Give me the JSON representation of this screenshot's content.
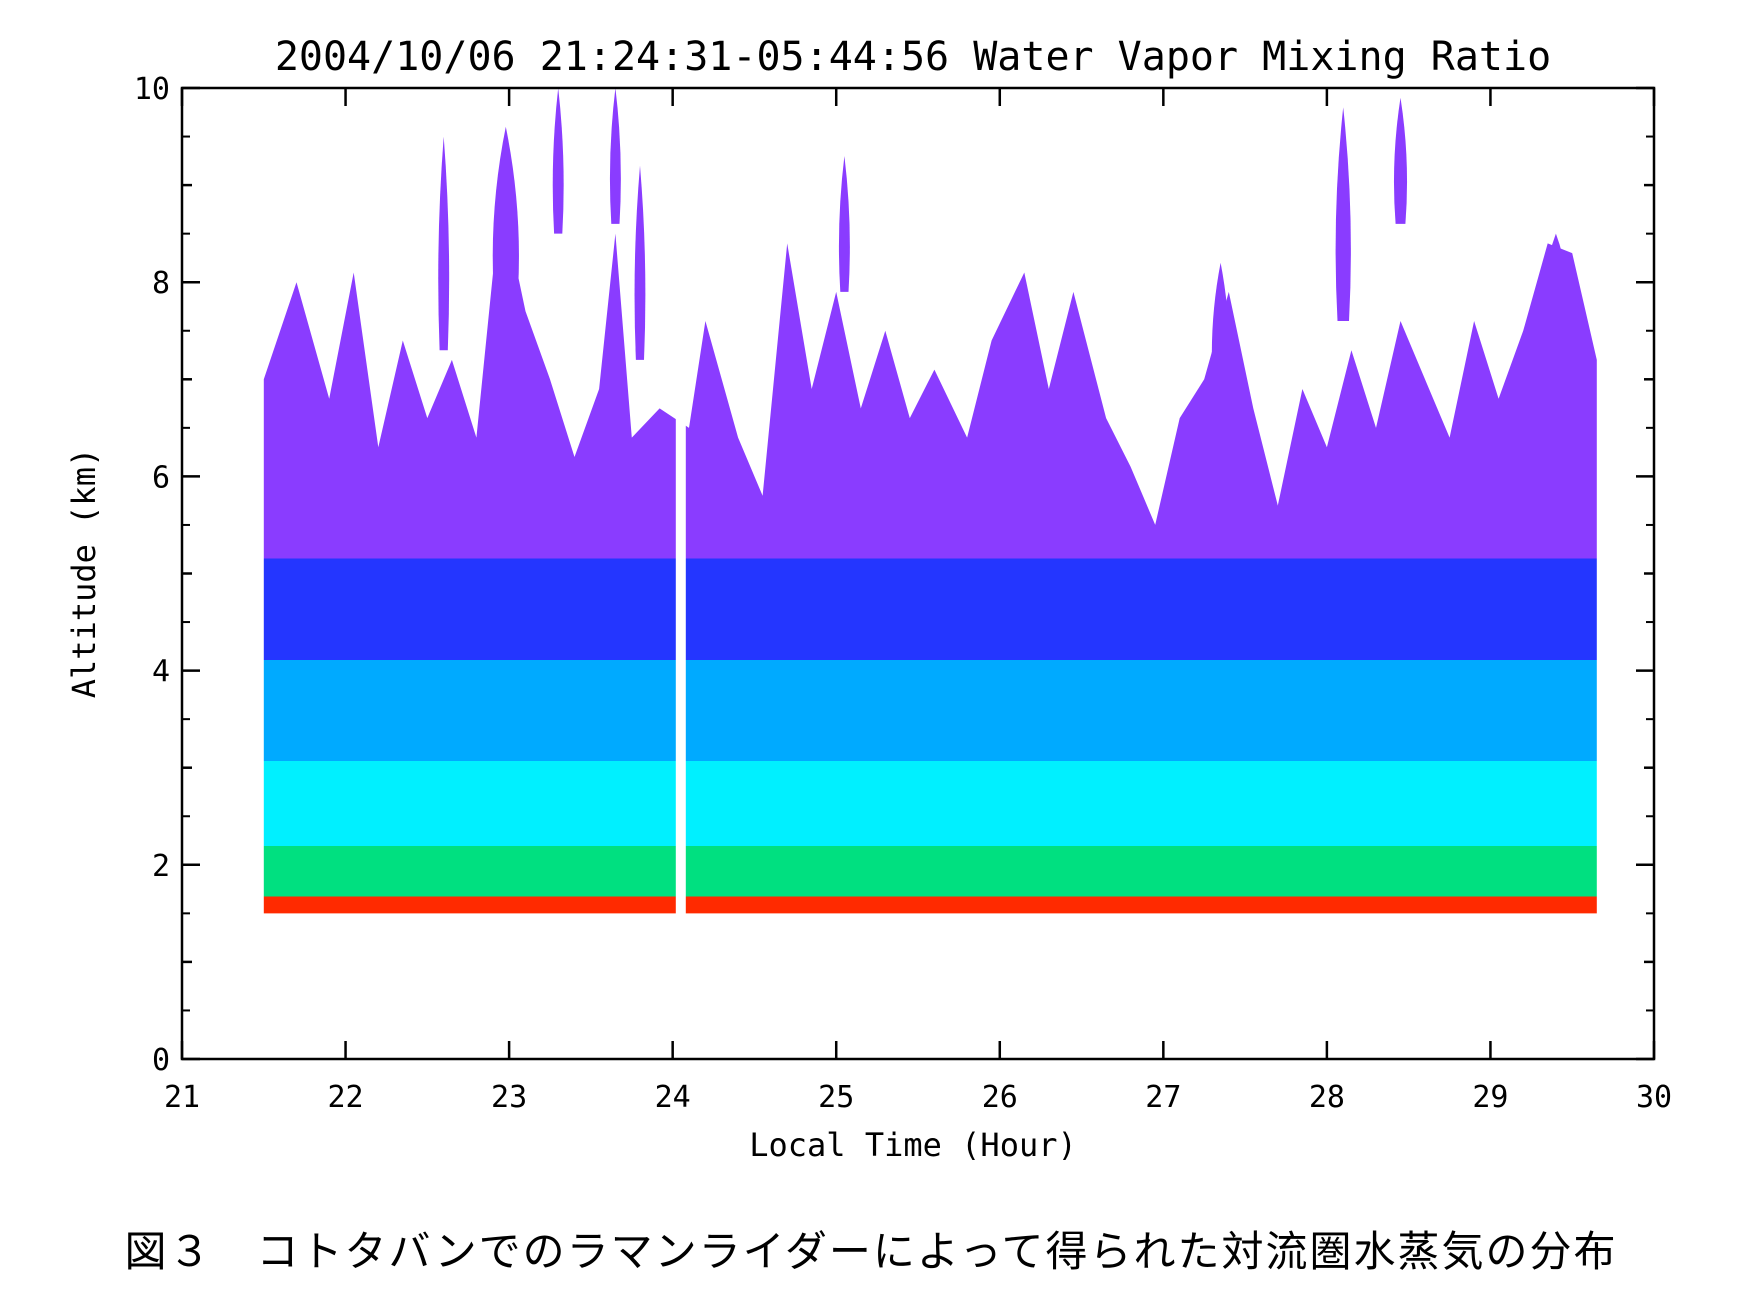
{
  "chart_data": {
    "type": "heatmap",
    "title": "2004/10/06 21:24:31-05:44:56 Water Vapor Mixing Ratio",
    "xlabel": "Local Time (Hour)",
    "ylabel": "Altitude (km)",
    "xlim": [
      21,
      30
    ],
    "ylim": [
      0,
      10
    ],
    "x_ticks": [
      "21",
      "22",
      "23",
      "24",
      "25",
      "26",
      "27",
      "28",
      "29",
      "30"
    ],
    "y_ticks": [
      "0",
      "2",
      "4",
      "6",
      "8",
      "10"
    ],
    "data_extent": {
      "x": [
        21.5,
        29.65
      ],
      "y": [
        1.5,
        10
      ]
    },
    "gap_at_hour": 24.05,
    "color_scale": [
      "#ff2a00",
      "#00c800",
      "#00ffff",
      "#00aaff",
      "#1f4fff",
      "#3a1fff",
      "#8a3cff",
      "#ffffff"
    ],
    "layer_colors_by_altitude": [
      {
        "altitude_km": [
          1.5,
          1.7
        ],
        "color": "#ff2a00"
      },
      {
        "altitude_km": [
          1.7,
          2.3
        ],
        "color": "#00e080"
      },
      {
        "altitude_km": [
          2.3,
          3.3
        ],
        "color": "#00f0ff"
      },
      {
        "altitude_km": [
          3.3,
          4.5
        ],
        "color": "#00aaff"
      },
      {
        "altitude_km": [
          4.5,
          5.7
        ],
        "color": "#2436ff"
      },
      {
        "altitude_km": [
          5.7,
          7.5
        ],
        "color": "#8a3cff"
      }
    ],
    "upper_boundary_km": [
      {
        "x": 21.5,
        "y": 7.0
      },
      {
        "x": 21.7,
        "y": 8.0
      },
      {
        "x": 21.9,
        "y": 6.8
      },
      {
        "x": 22.05,
        "y": 8.1
      },
      {
        "x": 22.2,
        "y": 6.3
      },
      {
        "x": 22.35,
        "y": 7.4
      },
      {
        "x": 22.5,
        "y": 6.6
      },
      {
        "x": 22.65,
        "y": 7.2
      },
      {
        "x": 22.8,
        "y": 6.4
      },
      {
        "x": 22.95,
        "y": 8.9
      },
      {
        "x": 23.1,
        "y": 7.7
      },
      {
        "x": 23.25,
        "y": 7.0
      },
      {
        "x": 23.4,
        "y": 6.2
      },
      {
        "x": 23.55,
        "y": 6.9
      },
      {
        "x": 23.65,
        "y": 8.5
      },
      {
        "x": 23.75,
        "y": 6.4
      },
      {
        "x": 23.92,
        "y": 6.7
      },
      {
        "x": 24.1,
        "y": 6.5
      },
      {
        "x": 24.2,
        "y": 7.6
      },
      {
        "x": 24.4,
        "y": 6.4
      },
      {
        "x": 24.55,
        "y": 5.8
      },
      {
        "x": 24.7,
        "y": 8.4
      },
      {
        "x": 24.85,
        "y": 6.9
      },
      {
        "x": 25.0,
        "y": 7.9
      },
      {
        "x": 25.15,
        "y": 6.7
      },
      {
        "x": 25.3,
        "y": 7.5
      },
      {
        "x": 25.45,
        "y": 6.6
      },
      {
        "x": 25.6,
        "y": 7.1
      },
      {
        "x": 25.8,
        "y": 6.4
      },
      {
        "x": 25.95,
        "y": 7.4
      },
      {
        "x": 26.15,
        "y": 8.1
      },
      {
        "x": 26.3,
        "y": 6.9
      },
      {
        "x": 26.45,
        "y": 7.9
      },
      {
        "x": 26.65,
        "y": 6.6
      },
      {
        "x": 26.8,
        "y": 6.1
      },
      {
        "x": 26.95,
        "y": 5.5
      },
      {
        "x": 27.1,
        "y": 6.6
      },
      {
        "x": 27.25,
        "y": 7.0
      },
      {
        "x": 27.4,
        "y": 7.9
      },
      {
        "x": 27.55,
        "y": 6.7
      },
      {
        "x": 27.7,
        "y": 5.7
      },
      {
        "x": 27.85,
        "y": 6.9
      },
      {
        "x": 28.0,
        "y": 6.3
      },
      {
        "x": 28.15,
        "y": 7.3
      },
      {
        "x": 28.3,
        "y": 6.5
      },
      {
        "x": 28.45,
        "y": 7.6
      },
      {
        "x": 28.6,
        "y": 7.0
      },
      {
        "x": 28.75,
        "y": 6.4
      },
      {
        "x": 28.9,
        "y": 7.6
      },
      {
        "x": 29.05,
        "y": 6.8
      },
      {
        "x": 29.2,
        "y": 7.5
      },
      {
        "x": 29.35,
        "y": 8.4
      },
      {
        "x": 29.5,
        "y": 8.3
      },
      {
        "x": 29.65,
        "y": 7.2
      }
    ],
    "plumes": [
      {
        "x": 22.6,
        "ybot": 7.3,
        "ytop": 9.5,
        "w": 0.05
      },
      {
        "x": 22.98,
        "ybot": 7.6,
        "ytop": 9.6,
        "w": 0.12
      },
      {
        "x": 23.3,
        "ybot": 8.5,
        "ytop": 10.0,
        "w": 0.05
      },
      {
        "x": 23.65,
        "ybot": 8.6,
        "ytop": 10.0,
        "w": 0.05
      },
      {
        "x": 23.8,
        "ybot": 7.2,
        "ytop": 9.2,
        "w": 0.05
      },
      {
        "x": 25.05,
        "ybot": 7.9,
        "ytop": 9.3,
        "w": 0.05
      },
      {
        "x": 27.35,
        "ybot": 6.8,
        "ytop": 8.2,
        "w": 0.08
      },
      {
        "x": 28.1,
        "ybot": 7.6,
        "ytop": 9.8,
        "w": 0.07
      },
      {
        "x": 28.45,
        "ybot": 8.6,
        "ytop": 9.9,
        "w": 0.06
      },
      {
        "x": 29.4,
        "ybot": 7.6,
        "ytop": 8.5,
        "w": 0.1
      }
    ],
    "grid": false,
    "legend": "none",
    "caption": "図３　コトタバンでのラマンライダーによって得られた対流圏水蒸気の分布"
  }
}
